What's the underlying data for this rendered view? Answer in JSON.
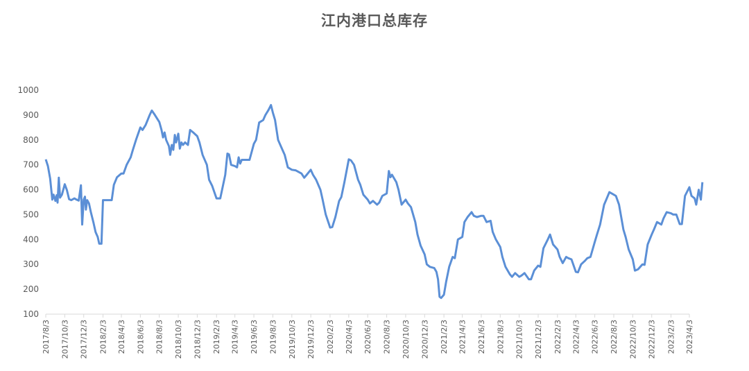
{
  "chart_data": {
    "type": "line",
    "title": "江内港口总库存",
    "xlabel": "",
    "ylabel": "",
    "ylim": [
      100,
      1000
    ],
    "yticks": [
      100,
      200,
      300,
      400,
      500,
      600,
      700,
      800,
      900,
      1000
    ],
    "grid": false,
    "legend": "none",
    "xticks": [
      "2017/8/3",
      "2017/10/3",
      "2017/12/3",
      "2018/2/3",
      "2018/4/3",
      "2018/6/3",
      "2018/8/3",
      "2018/10/3",
      "2018/12/3",
      "2019/2/3",
      "2019/4/3",
      "2019/6/3",
      "2019/8/3",
      "2019/10/3",
      "2019/12/3",
      "2020/2/3",
      "2020/4/3",
      "2020/6/3",
      "2020/8/3",
      "2020/10/3",
      "2020/12/3",
      "2021/2/3",
      "2021/4/3",
      "2021/6/3",
      "2021/8/3",
      "2021/10/3",
      "2021/12/3",
      "2022/2/3",
      "2022/4/3",
      "2022/6/3",
      "2022/8/3",
      "2022/10/3",
      "2022/12/3",
      "2023/2/3",
      "2023/4/3"
    ],
    "series": [
      {
        "color": "#5b8fd6",
        "points": [
          [
            "2017/8/3",
            722
          ],
          [
            "2017/8/10",
            695
          ],
          [
            "2017/8/17",
            645
          ],
          [
            "2017/8/24",
            560
          ],
          [
            "2017/8/28",
            580
          ],
          [
            "2017/9/3",
            555
          ],
          [
            "2017/9/7",
            578
          ],
          [
            "2017/9/10",
            548
          ],
          [
            "2017/9/14",
            648
          ],
          [
            "2017/9/18",
            568
          ],
          [
            "2017/9/24",
            580
          ],
          [
            "2017/10/3",
            622
          ],
          [
            "2017/10/10",
            598
          ],
          [
            "2017/10/17",
            562
          ],
          [
            "2017/10/24",
            558
          ],
          [
            "2017/11/3",
            565
          ],
          [
            "2017/11/10",
            560
          ],
          [
            "2017/11/17",
            556
          ],
          [
            "2017/11/24",
            618
          ],
          [
            "2017/11/28",
            460
          ],
          [
            "2017/12/3",
            560
          ],
          [
            "2017/12/7",
            572
          ],
          [
            "2017/12/10",
            520
          ],
          [
            "2017/12/14",
            558
          ],
          [
            "2017/12/20",
            545
          ],
          [
            "2017/12/26",
            510
          ],
          [
            "2018/1/3",
            470
          ],
          [
            "2018/1/10",
            430
          ],
          [
            "2018/1/17",
            410
          ],
          [
            "2018/1/22",
            383
          ],
          [
            "2018/1/29",
            383
          ],
          [
            "2018/2/3",
            558
          ],
          [
            "2018/2/20",
            558
          ],
          [
            "2018/3/3",
            558
          ],
          [
            "2018/3/10",
            620
          ],
          [
            "2018/3/20",
            650
          ],
          [
            "2018/4/3",
            665
          ],
          [
            "2018/4/10",
            665
          ],
          [
            "2018/4/20",
            700
          ],
          [
            "2018/5/3",
            730
          ],
          [
            "2018/5/10",
            760
          ],
          [
            "2018/5/20",
            800
          ],
          [
            "2018/6/3",
            850
          ],
          [
            "2018/6/10",
            840
          ],
          [
            "2018/6/20",
            860
          ],
          [
            "2018/7/3",
            900
          ],
          [
            "2018/7/10",
            918
          ],
          [
            "2018/7/20",
            900
          ],
          [
            "2018/8/3",
            872
          ],
          [
            "2018/8/10",
            840
          ],
          [
            "2018/8/15",
            810
          ],
          [
            "2018/8/20",
            830
          ],
          [
            "2018/8/25",
            800
          ],
          [
            "2018/9/3",
            775
          ],
          [
            "2018/9/7",
            740
          ],
          [
            "2018/9/12",
            780
          ],
          [
            "2018/9/17",
            760
          ],
          [
            "2018/9/22",
            820
          ],
          [
            "2018/9/26",
            790
          ],
          [
            "2018/10/3",
            825
          ],
          [
            "2018/10/8",
            765
          ],
          [
            "2018/10/13",
            790
          ],
          [
            "2018/10/18",
            780
          ],
          [
            "2018/10/25",
            790
          ],
          [
            "2018/11/3",
            780
          ],
          [
            "2018/11/10",
            840
          ],
          [
            "2018/11/20",
            830
          ],
          [
            "2018/12/3",
            815
          ],
          [
            "2018/12/10",
            790
          ],
          [
            "2018/12/20",
            740
          ],
          [
            "2019/1/3",
            700
          ],
          [
            "2019/1/10",
            640
          ],
          [
            "2019/1/20",
            615
          ],
          [
            "2019/2/3",
            565
          ],
          [
            "2019/2/15",
            565
          ],
          [
            "2019/3/3",
            660
          ],
          [
            "2019/3/10",
            745
          ],
          [
            "2019/3/15",
            742
          ],
          [
            "2019/3/22",
            700
          ],
          [
            "2019/4/3",
            695
          ],
          [
            "2019/4/10",
            690
          ],
          [
            "2019/4/15",
            730
          ],
          [
            "2019/4/20",
            705
          ],
          [
            "2019/4/25",
            720
          ],
          [
            "2019/5/3",
            720
          ],
          [
            "2019/5/20",
            720
          ],
          [
            "2019/6/3",
            785
          ],
          [
            "2019/6/10",
            800
          ],
          [
            "2019/6/20",
            870
          ],
          [
            "2019/7/3",
            880
          ],
          [
            "2019/7/10",
            900
          ],
          [
            "2019/7/20",
            920
          ],
          [
            "2019/7/28",
            940
          ],
          [
            "2019/8/3",
            910
          ],
          [
            "2019/8/10",
            880
          ],
          [
            "2019/8/20",
            800
          ],
          [
            "2019/9/3",
            760
          ],
          [
            "2019/9/10",
            740
          ],
          [
            "2019/9/20",
            690
          ],
          [
            "2019/10/3",
            680
          ],
          [
            "2019/10/15",
            678
          ],
          [
            "2019/11/3",
            665
          ],
          [
            "2019/11/12",
            648
          ],
          [
            "2019/11/20",
            660
          ],
          [
            "2019/12/3",
            680
          ],
          [
            "2019/12/10",
            660
          ],
          [
            "2019/12/20",
            640
          ],
          [
            "2020/1/3",
            600
          ],
          [
            "2020/1/10",
            560
          ],
          [
            "2020/1/20",
            500
          ],
          [
            "2020/2/3",
            448
          ],
          [
            "2020/2/10",
            450
          ],
          [
            "2020/2/20",
            490
          ],
          [
            "2020/3/3",
            555
          ],
          [
            "2020/3/10",
            570
          ],
          [
            "2020/3/20",
            630
          ],
          [
            "2020/4/3",
            722
          ],
          [
            "2020/4/10",
            718
          ],
          [
            "2020/4/20",
            700
          ],
          [
            "2020/5/3",
            640
          ],
          [
            "2020/5/10",
            620
          ],
          [
            "2020/5/20",
            580
          ],
          [
            "2020/6/3",
            560
          ],
          [
            "2020/6/10",
            545
          ],
          [
            "2020/6/20",
            555
          ],
          [
            "2020/7/3",
            540
          ],
          [
            "2020/7/10",
            548
          ],
          [
            "2020/7/20",
            575
          ],
          [
            "2020/8/3",
            585
          ],
          [
            "2020/8/10",
            675
          ],
          [
            "2020/8/15",
            650
          ],
          [
            "2020/8/20",
            660
          ],
          [
            "2020/9/3",
            630
          ],
          [
            "2020/9/10",
            600
          ],
          [
            "2020/9/20",
            540
          ],
          [
            "2020/10/3",
            560
          ],
          [
            "2020/10/10",
            545
          ],
          [
            "2020/10/20",
            530
          ],
          [
            "2020/11/3",
            470
          ],
          [
            "2020/11/10",
            420
          ],
          [
            "2020/11/20",
            375
          ],
          [
            "2020/12/3",
            340
          ],
          [
            "2020/12/10",
            300
          ],
          [
            "2020/12/20",
            290
          ],
          [
            "2021/1/3",
            285
          ],
          [
            "2021/1/10",
            270
          ],
          [
            "2021/1/15",
            240
          ],
          [
            "2021/1/20",
            170
          ],
          [
            "2021/1/25",
            165
          ],
          [
            "2021/2/3",
            178
          ],
          [
            "2021/2/10",
            230
          ],
          [
            "2021/2/20",
            290
          ],
          [
            "2021/3/3",
            330
          ],
          [
            "2021/3/10",
            325
          ],
          [
            "2021/3/20",
            400
          ],
          [
            "2021/4/3",
            410
          ],
          [
            "2021/4/10",
            470
          ],
          [
            "2021/4/20",
            490
          ],
          [
            "2021/5/3",
            510
          ],
          [
            "2021/5/10",
            495
          ],
          [
            "2021/5/20",
            490
          ],
          [
            "2021/6/3",
            495
          ],
          [
            "2021/6/10",
            495
          ],
          [
            "2021/6/20",
            470
          ],
          [
            "2021/7/3",
            475
          ],
          [
            "2021/7/10",
            430
          ],
          [
            "2021/7/20",
            400
          ],
          [
            "2021/8/3",
            370
          ],
          [
            "2021/8/10",
            330
          ],
          [
            "2021/8/20",
            290
          ],
          [
            "2021/9/3",
            260
          ],
          [
            "2021/9/10",
            250
          ],
          [
            "2021/9/20",
            265
          ],
          [
            "2021/10/3",
            250
          ],
          [
            "2021/10/10",
            255
          ],
          [
            "2021/10/20",
            265
          ],
          [
            "2021/11/3",
            240
          ],
          [
            "2021/11/10",
            240
          ],
          [
            "2021/11/20",
            275
          ],
          [
            "2021/12/3",
            295
          ],
          [
            "2021/12/10",
            290
          ],
          [
            "2021/12/20",
            365
          ],
          [
            "2022/1/3",
            400
          ],
          [
            "2022/1/10",
            420
          ],
          [
            "2022/1/20",
            380
          ],
          [
            "2022/2/3",
            360
          ],
          [
            "2022/2/10",
            330
          ],
          [
            "2022/2/20",
            305
          ],
          [
            "2022/3/3",
            330
          ],
          [
            "2022/3/10",
            325
          ],
          [
            "2022/3/20",
            320
          ],
          [
            "2022/4/3",
            270
          ],
          [
            "2022/4/10",
            268
          ],
          [
            "2022/4/20",
            300
          ],
          [
            "2022/5/3",
            315
          ],
          [
            "2022/5/10",
            325
          ],
          [
            "2022/5/20",
            330
          ],
          [
            "2022/6/3",
            390
          ],
          [
            "2022/6/10",
            420
          ],
          [
            "2022/6/20",
            460
          ],
          [
            "2022/7/3",
            540
          ],
          [
            "2022/7/10",
            560
          ],
          [
            "2022/7/20",
            590
          ],
          [
            "2022/8/3",
            580
          ],
          [
            "2022/8/10",
            575
          ],
          [
            "2022/8/20",
            540
          ],
          [
            "2022/9/3",
            440
          ],
          [
            "2022/9/10",
            410
          ],
          [
            "2022/9/20",
            360
          ],
          [
            "2022/10/3",
            320
          ],
          [
            "2022/10/10",
            275
          ],
          [
            "2022/10/20",
            280
          ],
          [
            "2022/11/3",
            300
          ],
          [
            "2022/11/10",
            298
          ],
          [
            "2022/11/20",
            380
          ],
          [
            "2022/12/3",
            420
          ],
          [
            "2022/12/10",
            440
          ],
          [
            "2022/12/20",
            470
          ],
          [
            "2023/1/3",
            460
          ],
          [
            "2023/1/10",
            485
          ],
          [
            "2023/1/20",
            510
          ],
          [
            "2023/2/3",
            505
          ],
          [
            "2023/2/10",
            500
          ],
          [
            "2023/2/20",
            500
          ],
          [
            "2023/3/3",
            462
          ],
          [
            "2023/3/10",
            462
          ],
          [
            "2023/3/20",
            575
          ],
          [
            "2023/4/3",
            610
          ],
          [
            "2023/4/10",
            575
          ],
          [
            "2023/4/20",
            565
          ],
          [
            "2023/4/25",
            540
          ],
          [
            "2023/5/3",
            600
          ],
          [
            "2023/5/10",
            560
          ],
          [
            "2023/5/15",
            630
          ]
        ]
      }
    ]
  }
}
